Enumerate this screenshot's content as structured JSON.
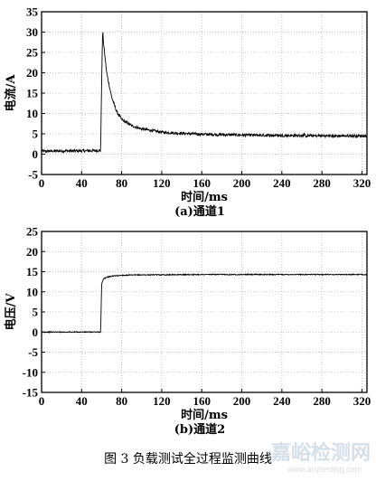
{
  "chart_data": [
    {
      "type": "line",
      "xlabel": "时间/ms",
      "ylabel": "电流/A",
      "subtitle": "(a)通道1",
      "xlim": [
        0,
        325
      ],
      "ylim": [
        -5,
        35
      ],
      "xticks": [
        0,
        40,
        80,
        120,
        160,
        200,
        240,
        280,
        320
      ],
      "yticks": [
        -5,
        0,
        5,
        10,
        15,
        20,
        25,
        30,
        35
      ],
      "grid": true,
      "color": "#000000",
      "x": [
        0,
        20,
        40,
        59,
        60,
        61,
        62,
        65,
        70,
        75,
        80,
        90,
        100,
        120,
        140,
        160,
        180,
        200,
        240,
        280,
        320,
        325
      ],
      "y": [
        0.7,
        0.8,
        0.8,
        0.9,
        18,
        30.5,
        27,
        20,
        14,
        10.5,
        8.5,
        7,
        6.2,
        5.4,
        5.1,
        4.9,
        4.8,
        4.7,
        4.6,
        4.5,
        4.5,
        4.5
      ]
    },
    {
      "type": "line",
      "xlabel": "时间/ms",
      "ylabel": "电压/V",
      "subtitle": "(b)通道2",
      "xlim": [
        0,
        325
      ],
      "ylim": [
        -15,
        25
      ],
      "xticks": [
        0,
        40,
        80,
        120,
        160,
        200,
        240,
        280,
        320
      ],
      "yticks": [
        -15,
        -10,
        -5,
        0,
        5,
        10,
        15,
        20,
        25
      ],
      "grid": true,
      "color": "#000000",
      "x": [
        0,
        20,
        40,
        59,
        60,
        62,
        65,
        70,
        80,
        100,
        160,
        240,
        320,
        325
      ],
      "y": [
        0,
        0,
        0,
        0,
        12,
        13.2,
        13.6,
        13.9,
        14.1,
        14.2,
        14.3,
        14.3,
        14.3,
        14.3
      ]
    }
  ],
  "caption": "图 3   负载测试全过程监测曲线",
  "watermark": {
    "text": "嘉峪检测网",
    "url": "www.anytesting.com"
  }
}
